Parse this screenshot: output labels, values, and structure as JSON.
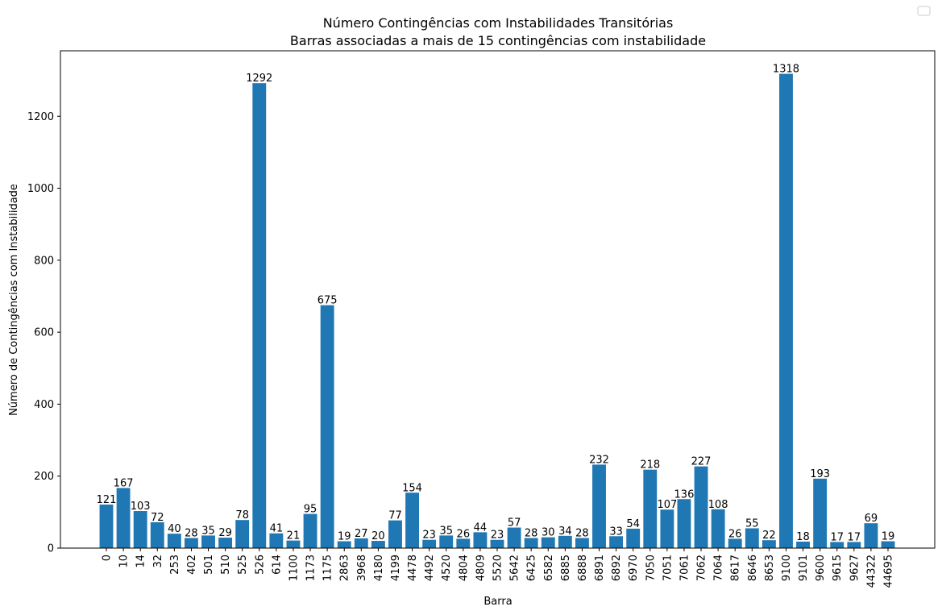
{
  "chart_data": {
    "type": "bar",
    "title": "Número Contingências com Instabilidades Transitórias",
    "subtitle": "Barras associadas a mais de 15 contingências com instabilidade",
    "xlabel": "Barra",
    "ylabel": "Número de Contingências com Instabilidade",
    "ylim": [
      0,
      1382
    ],
    "yticks": [
      0,
      200,
      400,
      600,
      800,
      1000,
      1200
    ],
    "grid": false,
    "legend": "top-right",
    "bar_color": "#1f77b4",
    "categories": [
      "0",
      "10",
      "14",
      "32",
      "253",
      "402",
      "501",
      "510",
      "525",
      "526",
      "614",
      "1100",
      "1173",
      "1175",
      "2863",
      "3968",
      "4180",
      "4199",
      "4478",
      "4492",
      "4520",
      "4804",
      "4809",
      "5520",
      "5642",
      "6425",
      "6582",
      "6885",
      "6888",
      "6891",
      "6892",
      "6970",
      "7050",
      "7051",
      "7061",
      "7062",
      "7064",
      "8617",
      "8646",
      "8653",
      "9100",
      "9101",
      "9600",
      "9615",
      "9627",
      "44322",
      "44695"
    ],
    "values": [
      121,
      167,
      103,
      72,
      40,
      28,
      35,
      29,
      78,
      1292,
      41,
      21,
      95,
      675,
      19,
      27,
      20,
      77,
      154,
      23,
      35,
      26,
      44,
      23,
      57,
      28,
      30,
      34,
      28,
      232,
      33,
      54,
      218,
      107,
      136,
      227,
      108,
      26,
      55,
      22,
      1318,
      18,
      193,
      17,
      17,
      69,
      19
    ]
  }
}
